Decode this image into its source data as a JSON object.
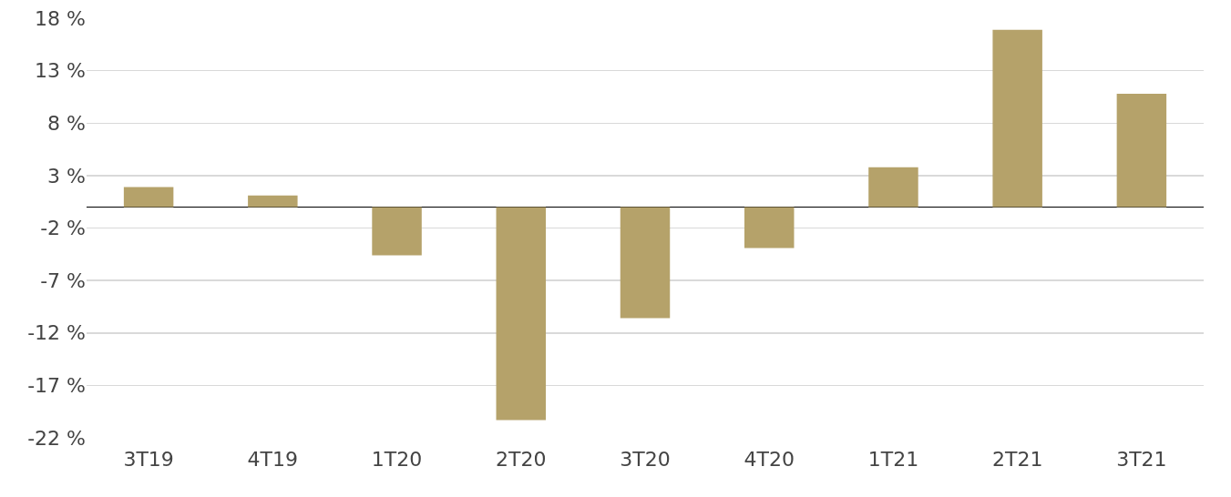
{
  "chart_data": {
    "type": "bar",
    "categories": [
      "3T19",
      "4T19",
      "1T20",
      "2T20",
      "3T20",
      "4T20",
      "1T21",
      "2T21",
      "3T21"
    ],
    "values": [
      1.9,
      1.1,
      -4.6,
      -20.3,
      -10.6,
      -3.9,
      3.8,
      16.9,
      10.8
    ],
    "color": "#b5a26a",
    "ylim": [
      -22,
      18
    ],
    "yticks": [
      {
        "value": 18,
        "label": "18 %"
      },
      {
        "value": 13,
        "label": "13 %"
      },
      {
        "value": 8,
        "label": "8 %"
      },
      {
        "value": 3,
        "label": "3 %"
      },
      {
        "value": -2,
        "label": "-2 %"
      },
      {
        "value": -7,
        "label": "-7 %"
      },
      {
        "value": -12,
        "label": "-12 %"
      },
      {
        "value": -17,
        "label": "-17 %"
      },
      {
        "value": -22,
        "label": "-22 %"
      }
    ],
    "grid": "y",
    "legend": false
  }
}
